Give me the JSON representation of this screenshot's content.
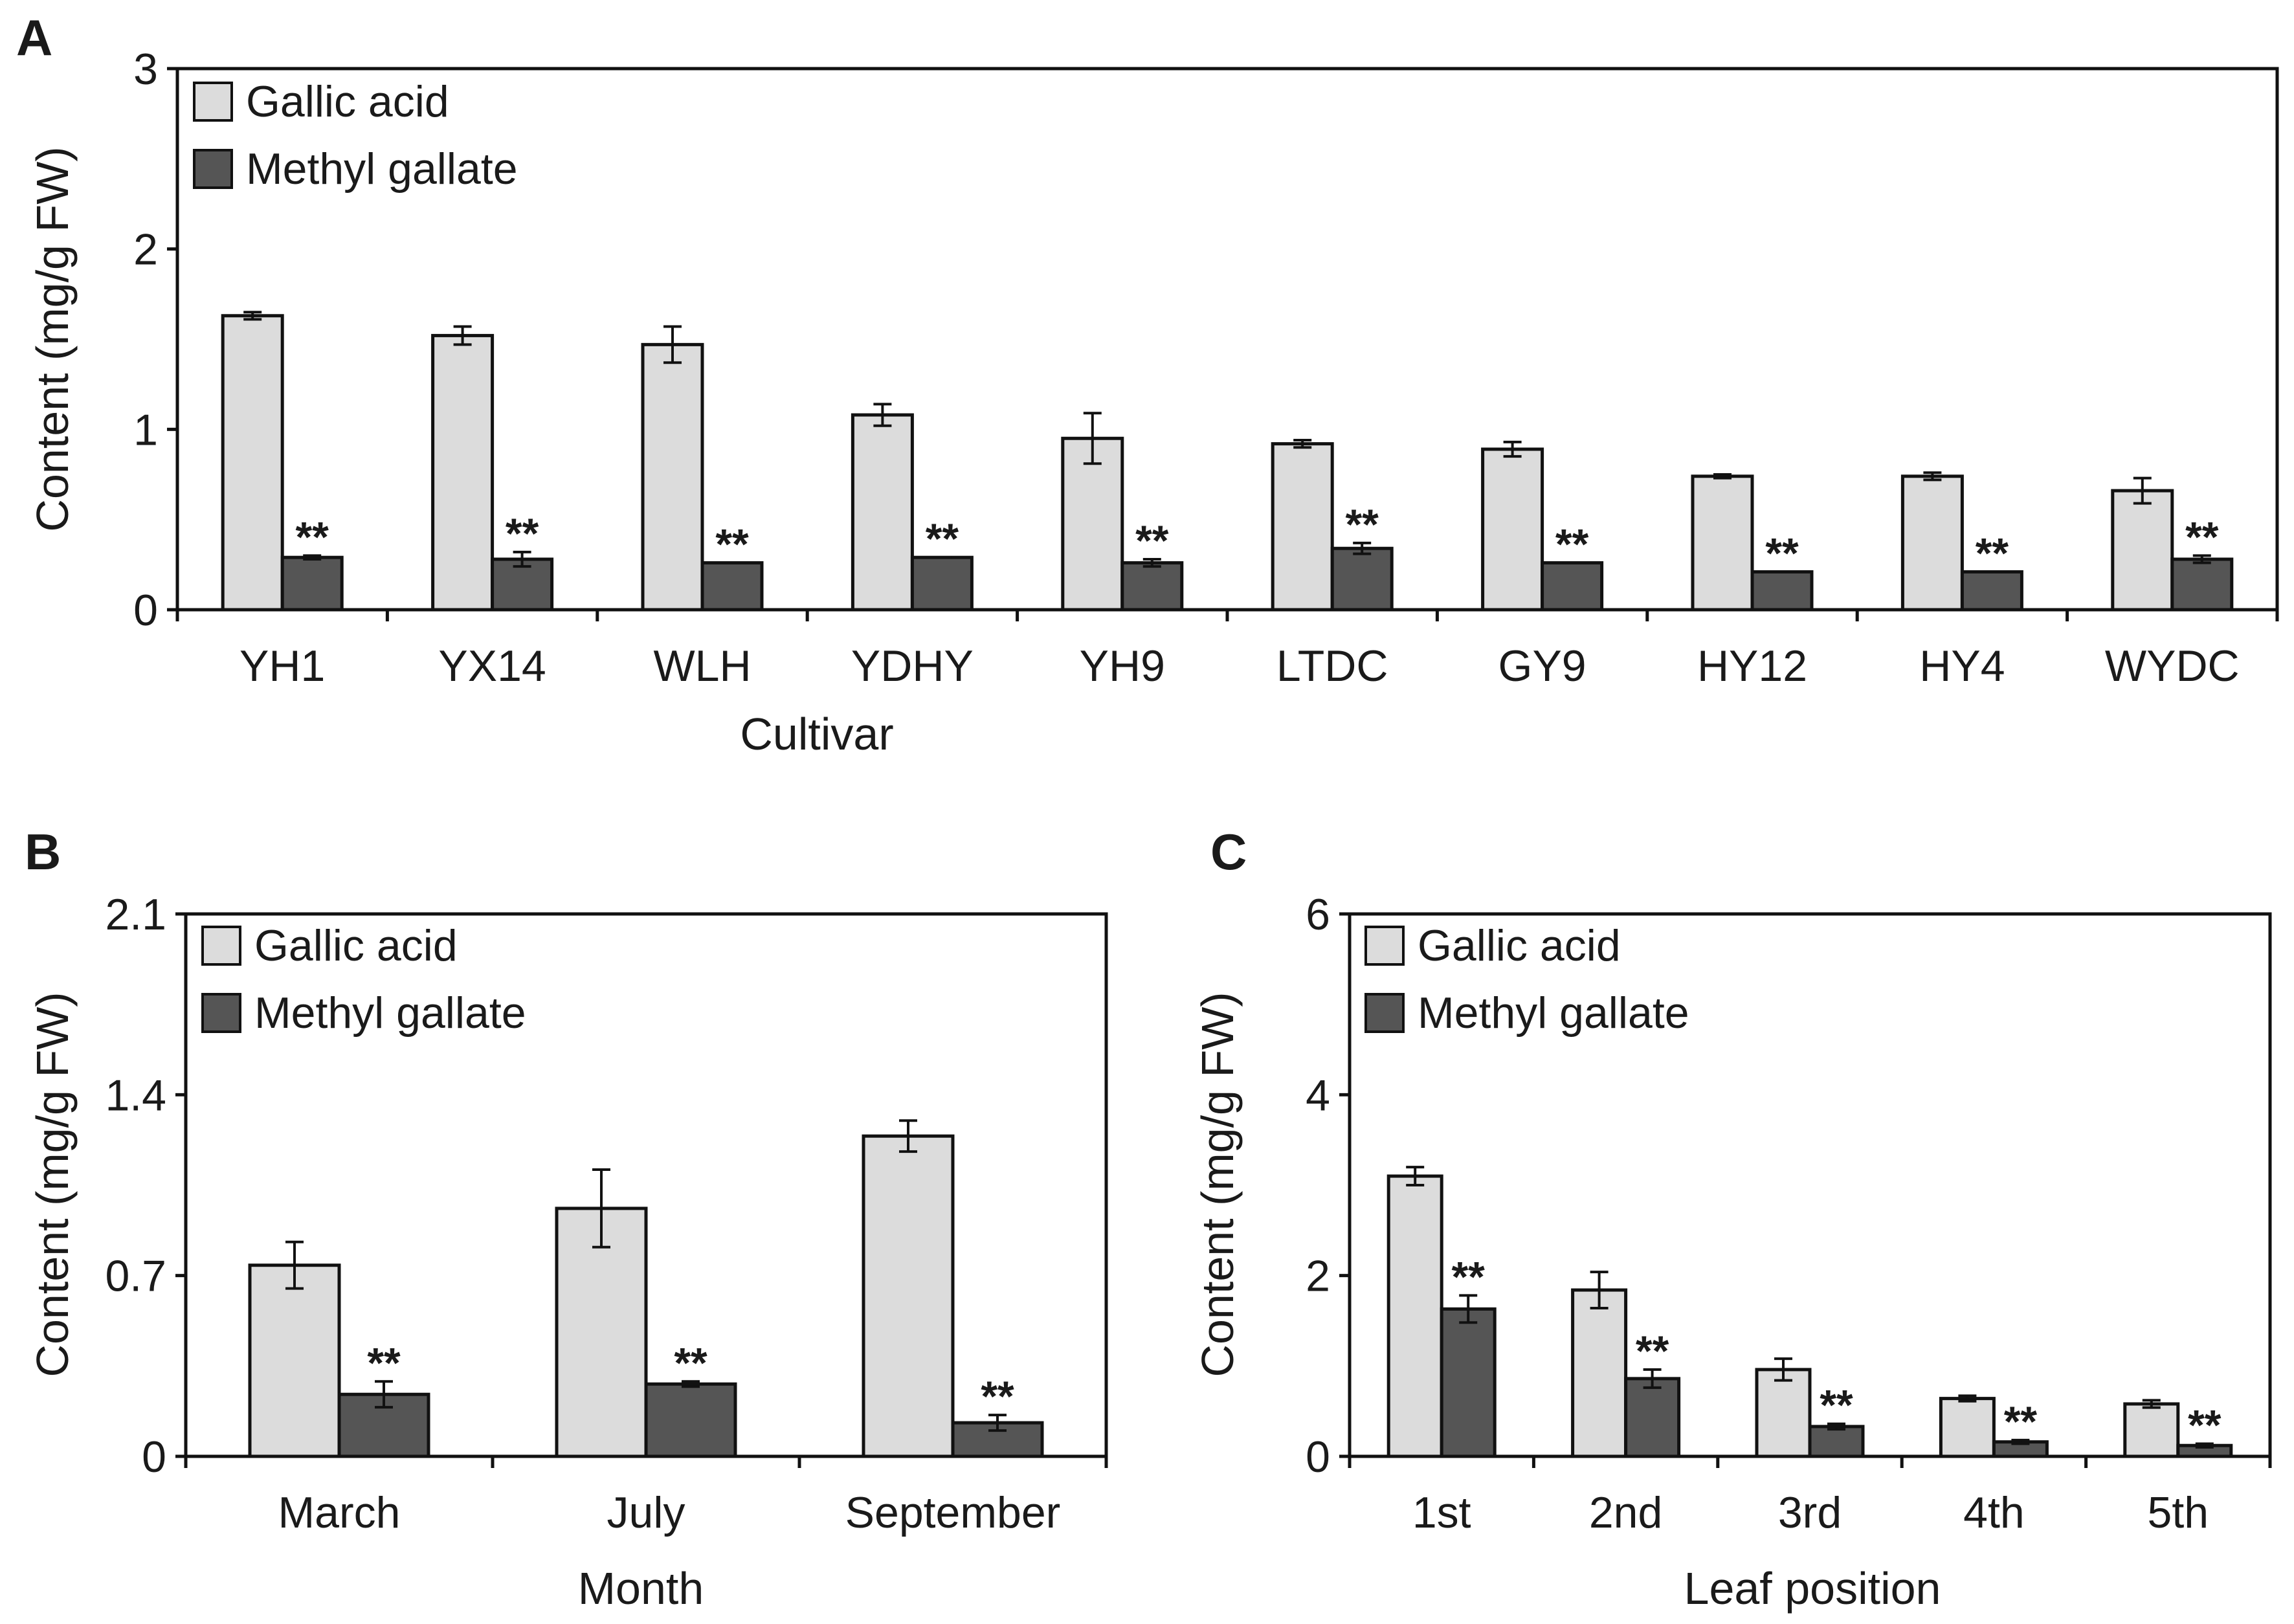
{
  "figure": {
    "colors": {
      "gallic": "#dcdcdc",
      "methyl": "#555555",
      "stroke": "#111111"
    }
  },
  "chart_data": [
    {
      "type": "bar",
      "panel": "A",
      "xlabel": "Cultivar",
      "ylabel": "Content (mg/g FW)",
      "ylim": [
        0,
        3
      ],
      "yticks": [
        0,
        1,
        2,
        3
      ],
      "ytick_labels": [
        "0",
        "1",
        "2",
        "3"
      ],
      "legend": {
        "position": "top-left"
      },
      "categories": [
        "YH1",
        "YX14",
        "WLH",
        "YDHY",
        "YH9",
        "LTDC",
        "GY9",
        "HY12",
        "HY4",
        "WYDC"
      ],
      "series": [
        {
          "name": "Gallic acid",
          "color": "#dcdcdc",
          "values": [
            1.63,
            1.52,
            1.47,
            1.08,
            0.95,
            0.92,
            0.89,
            0.74,
            0.74,
            0.66
          ],
          "errors": [
            0.02,
            0.05,
            0.1,
            0.06,
            0.14,
            0.02,
            0.04,
            0.01,
            0.02,
            0.07
          ]
        },
        {
          "name": "Methyl gallate",
          "color": "#555555",
          "values": [
            0.29,
            0.28,
            0.26,
            0.29,
            0.26,
            0.34,
            0.26,
            0.21,
            0.21,
            0.28
          ],
          "errors": [
            0.01,
            0.04,
            0.0,
            0.0,
            0.02,
            0.03,
            0.0,
            0.0,
            0.0,
            0.02
          ],
          "annotation": "**"
        }
      ]
    },
    {
      "type": "bar",
      "panel": "B",
      "xlabel": "Month",
      "ylabel": "Content (mg/g FW)",
      "ylim": [
        0,
        2.1
      ],
      "yticks": [
        0,
        0.7,
        1.4,
        2.1
      ],
      "ytick_labels": [
        "0",
        "0.7",
        "1.4",
        "2.1"
      ],
      "legend": {
        "position": "top-left"
      },
      "categories": [
        "March",
        "July",
        "September"
      ],
      "series": [
        {
          "name": "Gallic acid",
          "color": "#dcdcdc",
          "values": [
            0.74,
            0.96,
            1.24
          ],
          "errors": [
            0.09,
            0.15,
            0.06
          ]
        },
        {
          "name": "Methyl gallate",
          "color": "#555555",
          "values": [
            0.24,
            0.28,
            0.13
          ],
          "errors": [
            0.05,
            0.01,
            0.03
          ],
          "annotation": "**"
        }
      ]
    },
    {
      "type": "bar",
      "panel": "C",
      "xlabel": "Leaf position",
      "ylabel": "Content (mg/g FW)",
      "ylim": [
        0,
        6
      ],
      "yticks": [
        0,
        2,
        4,
        6
      ],
      "ytick_labels": [
        "0",
        "2",
        "4",
        "6"
      ],
      "legend": {
        "position": "top-left"
      },
      "categories": [
        "1st",
        "2nd",
        "3rd",
        "4th",
        "5th"
      ],
      "series": [
        {
          "name": "Gallic acid",
          "color": "#dcdcdc",
          "values": [
            3.1,
            1.84,
            0.96,
            0.64,
            0.58
          ],
          "errors": [
            0.1,
            0.2,
            0.12,
            0.03,
            0.04
          ]
        },
        {
          "name": "Methyl gallate",
          "color": "#555555",
          "values": [
            1.63,
            0.86,
            0.33,
            0.16,
            0.12
          ],
          "errors": [
            0.15,
            0.1,
            0.03,
            0.02,
            0.02
          ],
          "annotation": "**"
        }
      ]
    }
  ]
}
